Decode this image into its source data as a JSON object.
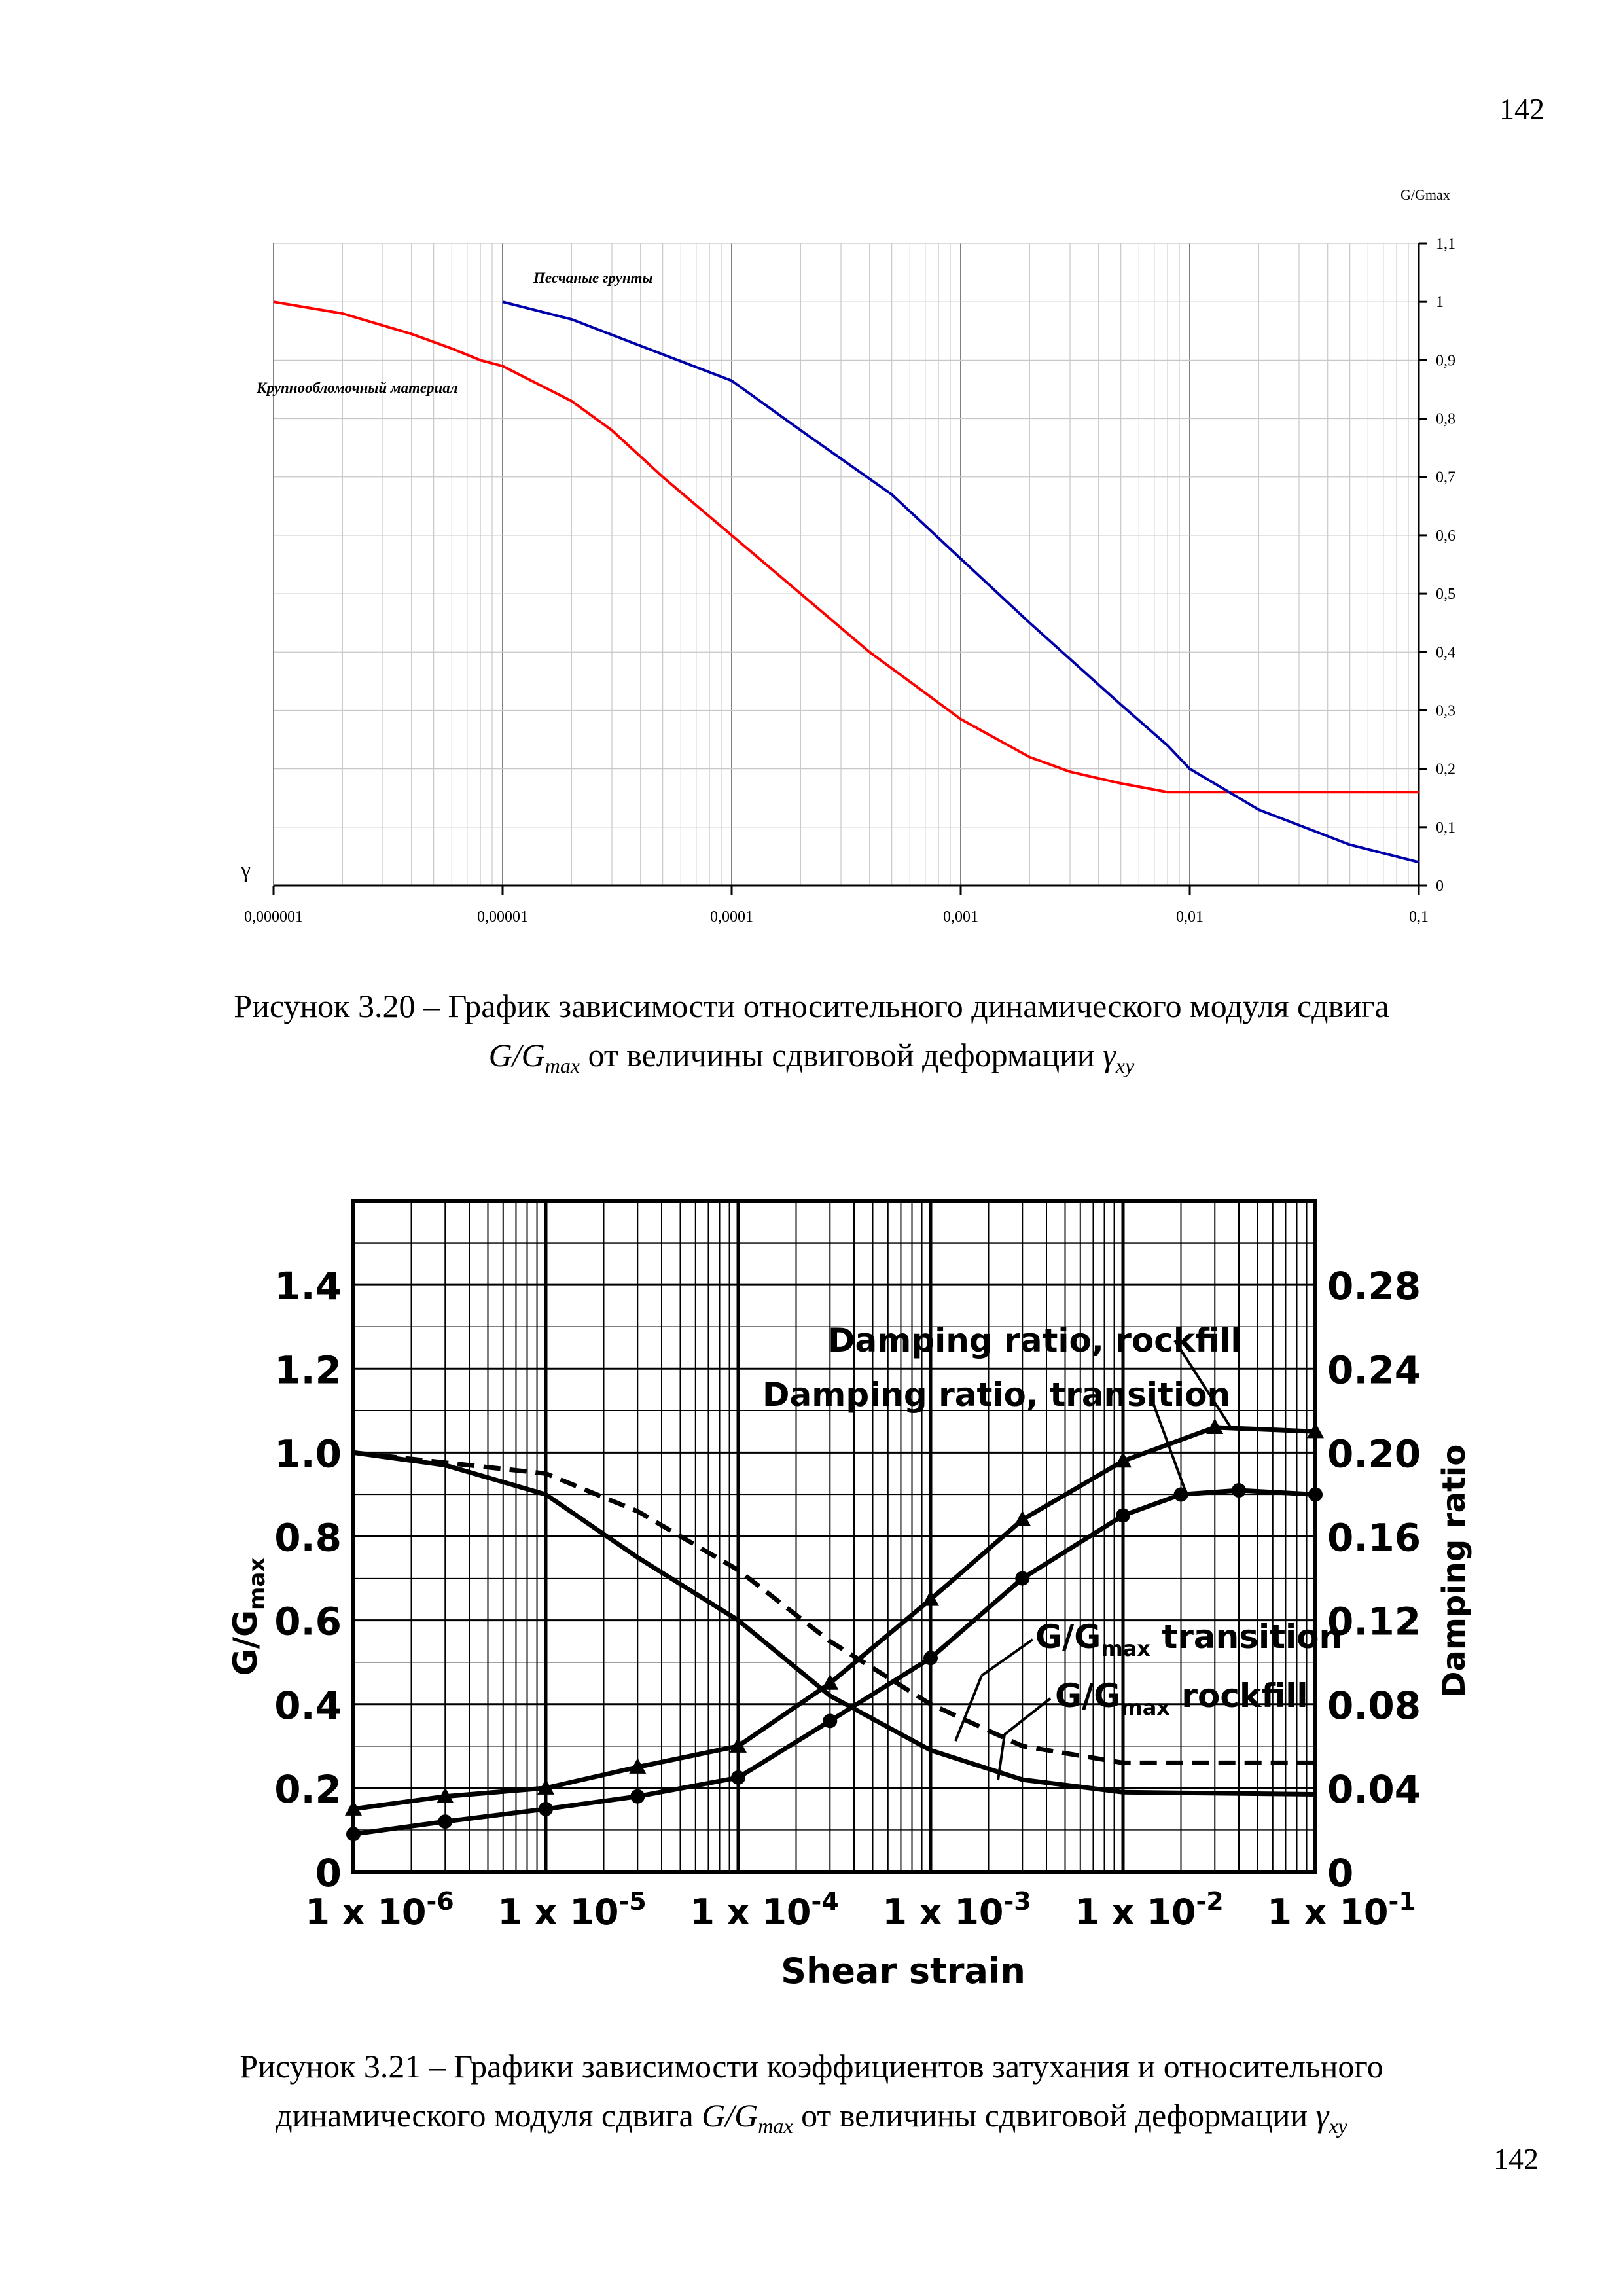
{
  "page_number_top": "142",
  "page_number_bottom": "142",
  "caption1": {
    "line1": "Рисунок 3.20 – График зависимости относительного динамического модуля сдвига",
    "line2_sym": "G/G",
    "line2_sub": "max",
    "line2_text": " от величины сдвиговой деформации ",
    "line2_gamma": "γ",
    "line2_gamma_sub": "xy"
  },
  "caption2": {
    "line1": "Рисунок 3.21 – Графики зависимости коэффициентов затухания и относительного",
    "line2_pre": "динамического модуля сдвига ",
    "line2_sym": "G/G",
    "line2_sub": "max",
    "line2_text": " от величины сдвиговой деформации ",
    "line2_gamma": "γ",
    "line2_gamma_sub": "xy"
  },
  "chart_data": [
    {
      "type": "line",
      "xscale": "log",
      "xlim": [
        1e-06,
        0.1
      ],
      "ylim": [
        0,
        1.1
      ],
      "yaxis_side": "right",
      "grid": true,
      "xlabel": "γ",
      "ylabel": "G/Gmax",
      "x_ticks": [
        "0,000001",
        "0,00001",
        "0,0001",
        "0,001",
        "0,01",
        "0,1"
      ],
      "y_ticks": [
        "0",
        "0,1",
        "0,2",
        "0,3",
        "0,4",
        "0,5",
        "0,6",
        "0,7",
        "0,8",
        "0,9",
        "1",
        "1,1"
      ],
      "series": [
        {
          "name": "Крупнообломочный материал",
          "color": "#ff0000",
          "points": [
            [
              1e-06,
              1.0
            ],
            [
              2e-06,
              0.98
            ],
            [
              4e-06,
              0.945
            ],
            [
              6e-06,
              0.92
            ],
            [
              8e-06,
              0.9
            ],
            [
              1e-05,
              0.89
            ],
            [
              2e-05,
              0.83
            ],
            [
              3e-05,
              0.78
            ],
            [
              5e-05,
              0.7
            ],
            [
              0.0001,
              0.6
            ],
            [
              0.0002,
              0.5
            ],
            [
              0.0004,
              0.4
            ],
            [
              0.0007,
              0.33
            ],
            [
              0.001,
              0.285
            ],
            [
              0.002,
              0.22
            ],
            [
              0.003,
              0.195
            ],
            [
              0.005,
              0.175
            ],
            [
              0.008,
              0.16
            ],
            [
              0.01,
              0.16
            ],
            [
              0.02,
              0.16
            ],
            [
              0.05,
              0.16
            ],
            [
              0.1,
              0.16
            ]
          ]
        },
        {
          "name": "Песчаные грунты",
          "color": "#0000aa",
          "points": [
            [
              1e-05,
              1.0
            ],
            [
              2e-05,
              0.97
            ],
            [
              5e-05,
              0.91
            ],
            [
              0.0001,
              0.865
            ],
            [
              0.0002,
              0.78
            ],
            [
              0.0005,
              0.67
            ],
            [
              0.001,
              0.56
            ],
            [
              0.002,
              0.45
            ],
            [
              0.005,
              0.31
            ],
            [
              0.008,
              0.24
            ],
            [
              0.01,
              0.2
            ],
            [
              0.02,
              0.13
            ],
            [
              0.05,
              0.07
            ],
            [
              0.1,
              0.04
            ]
          ]
        }
      ]
    },
    {
      "type": "line",
      "xscale": "log",
      "xlim": [
        1e-06,
        0.1
      ],
      "ylim_left": [
        0,
        1.6
      ],
      "ylim_right": [
        0,
        0.32
      ],
      "grid": true,
      "xlabel": "Shear strain",
      "ylabel_left": "G/G",
      "ylabel_left_sub": "max",
      "ylabel_right": "Damping ratio",
      "x_tick_mant": [
        "1 x 10",
        "1 x 10",
        "1 x 10",
        "1 x 10",
        "1 x 10",
        "1 x 10"
      ],
      "x_tick_exp": [
        "-6",
        "-5",
        "-4",
        "-3",
        "-2",
        "-1"
      ],
      "y_ticks_left": [
        "0",
        "0.2",
        "0.4",
        "0.6",
        "0.8",
        "1.0",
        "1.2",
        "1.4"
      ],
      "y_ticks_right": [
        "0",
        "0.04",
        "0.08",
        "0.12",
        "0.16",
        "0.20",
        "0.24",
        "0.28"
      ],
      "series": [
        {
          "name": "Damping ratio, rockfill",
          "axis": "right",
          "marker": "triangle",
          "points": [
            [
              1e-06,
              0.03
            ],
            [
              3e-06,
              0.036
            ],
            [
              1e-05,
              0.04
            ],
            [
              3e-05,
              0.05
            ],
            [
              0.0001,
              0.06
            ],
            [
              0.0003,
              0.09
            ],
            [
              0.001,
              0.13
            ],
            [
              0.003,
              0.168
            ],
            [
              0.01,
              0.196
            ],
            [
              0.03,
              0.212
            ],
            [
              0.1,
              0.21
            ]
          ]
        },
        {
          "name": "Damping ratio, transition",
          "axis": "right",
          "marker": "circle",
          "points": [
            [
              1e-06,
              0.018
            ],
            [
              3e-06,
              0.024
            ],
            [
              1e-05,
              0.03
            ],
            [
              3e-05,
              0.036
            ],
            [
              0.0001,
              0.045
            ],
            [
              0.0003,
              0.072
            ],
            [
              0.001,
              0.102
            ],
            [
              0.003,
              0.14
            ],
            [
              0.01,
              0.17
            ],
            [
              0.02,
              0.18
            ],
            [
              0.04,
              0.182
            ],
            [
              0.1,
              0.18
            ]
          ]
        },
        {
          "name": "G/Gmax rockfill",
          "axis": "left",
          "style": "solid",
          "points": [
            [
              1e-06,
              1.0
            ],
            [
              3e-06,
              0.97
            ],
            [
              1e-05,
              0.9
            ],
            [
              3e-05,
              0.75
            ],
            [
              0.0001,
              0.6
            ],
            [
              0.0003,
              0.42
            ],
            [
              0.001,
              0.29
            ],
            [
              0.003,
              0.22
            ],
            [
              0.01,
              0.19
            ],
            [
              0.1,
              0.185
            ]
          ]
        },
        {
          "name": "G/Gmax transition",
          "axis": "left",
          "style": "dashed",
          "points": [
            [
              1e-06,
              1.0
            ],
            [
              1e-05,
              0.95
            ],
            [
              3e-05,
              0.86
            ],
            [
              0.0001,
              0.72
            ],
            [
              0.0003,
              0.55
            ],
            [
              0.001,
              0.4
            ],
            [
              0.003,
              0.3
            ],
            [
              0.01,
              0.26
            ],
            [
              0.1,
              0.26
            ]
          ]
        }
      ],
      "labels": {
        "damping_rockfill": "Damping ratio, rockfill",
        "damping_transition": "Damping ratio, transition",
        "g_transition_pre": "G/G",
        "g_transition_sub": "max",
        "g_transition_post": " transition",
        "g_rockfill_pre": "G/G",
        "g_rockfill_sub": "max",
        "g_rockfill_post": " rockfill"
      }
    }
  ]
}
